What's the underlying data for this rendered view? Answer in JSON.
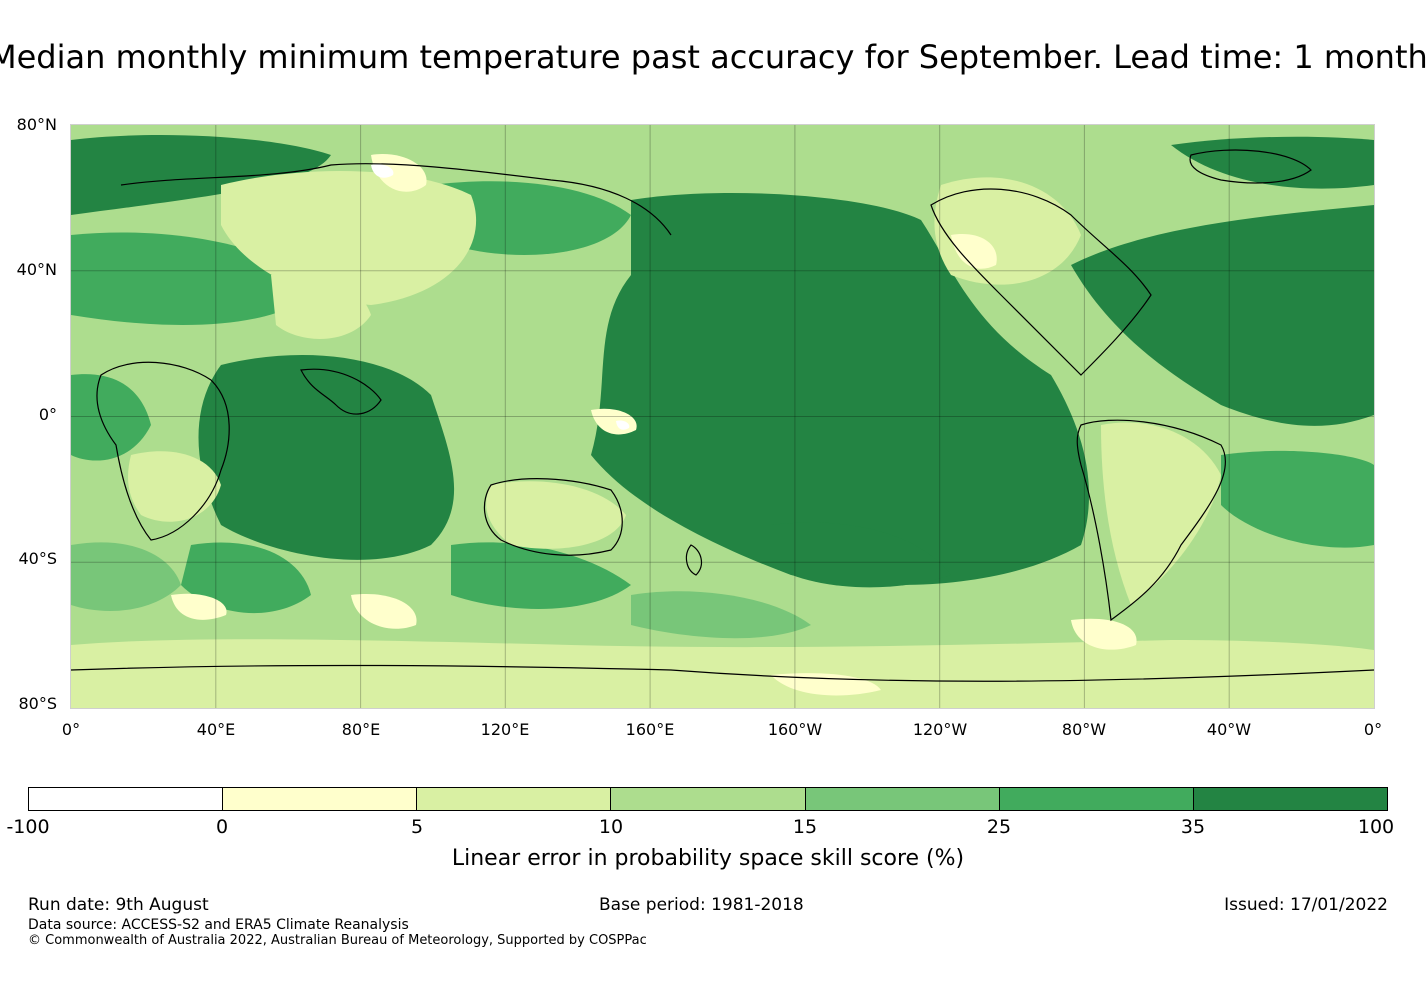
{
  "title": "Median monthly minimum temperature past accuracy for September. Lead time: 1 month",
  "map": {
    "lat_labels": [
      "80°N",
      "40°N",
      "0°",
      "40°S",
      "80°S"
    ],
    "lon_labels": [
      "0°",
      "40°E",
      "80°E",
      "120°E",
      "160°E",
      "160°W",
      "120°W",
      "80°W",
      "40°W",
      "0°"
    ],
    "graticule": true
  },
  "colorbar": {
    "ticks": [
      "-100",
      "0",
      "5",
      "10",
      "15",
      "25",
      "35",
      "100"
    ],
    "colors": [
      "#ffffff",
      "#ffffcc",
      "#d9f0a3",
      "#addd8e",
      "#78c679",
      "#41ab5d",
      "#238443"
    ],
    "label": "Linear error in probability space skill score (%)"
  },
  "footer": {
    "run_date": "Run date: 9th August",
    "base_period": "Base period: 1981-2018",
    "issued": "Issued: 17/01/2022",
    "data_source": "Data source: ACCESS-S2 and ERA5 Climate Reanalysis",
    "copyright": "© Commonwealth of Australia 2022, Australian Bureau of Meteorology, Supported by COSPPac"
  }
}
